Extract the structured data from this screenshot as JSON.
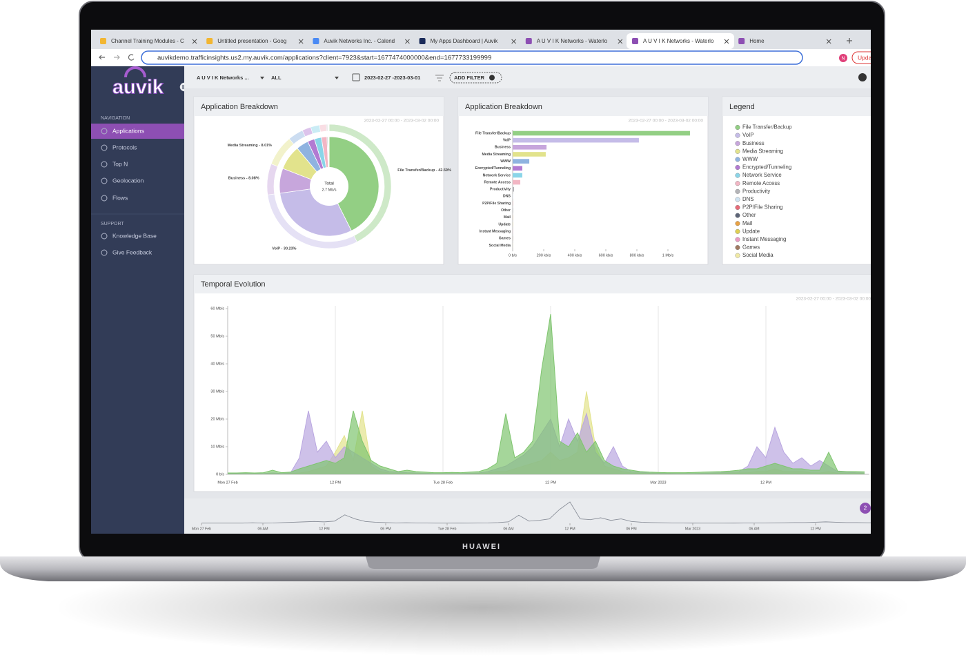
{
  "browser": {
    "tabs": [
      "Channel Training Modules - C",
      "Untitled presentation - Goog",
      "Auvik Networks Inc. - Calend",
      "My Apps Dashboard | Auvik",
      "A U V I K Networks - Waterlo",
      "A U V I K Networks - Waterlo",
      "Home"
    ],
    "url": "auvikdemo.trafficinsights.us2.my.auvik.com/applications?client=7923&start=1677474000000&end=1677733199999",
    "update_button": "Upda",
    "profile": "N"
  },
  "sidebar": {
    "logo": "auvik",
    "nav_heading": "NAVIGATION",
    "nav": [
      "Applications",
      "Protocols",
      "Top N",
      "Geolocation",
      "Flows"
    ],
    "support_heading": "SUPPORT",
    "support": [
      "Knowledge Base",
      "Give Feedback"
    ]
  },
  "toolbar": {
    "network": "A U V I K Networks ...",
    "filter": "ALL",
    "date_range": "2023-02-27 -2023-03-01",
    "add_filter": "ADD FILTER"
  },
  "legend": {
    "title": "Legend"
  },
  "chart_data": [
    {
      "type": "pie",
      "title": "Application Breakdown",
      "subtitle": "2023-02-27 00:00 - 2023-03-02 00:00",
      "center_label": "Total",
      "center_value": "2.7 Mb/s",
      "categories": [
        "File Transfer/Backup",
        "VoIP",
        "Business",
        "Media Streaming",
        "WWW",
        "Encrypted/Tunneling",
        "Network Service",
        "Remote Access",
        "Productivity",
        "DNS",
        "P2P/File Sharing",
        "Other",
        "Mail",
        "Update",
        "Instant Messaging",
        "Games",
        "Social Media"
      ],
      "values": [
        42.59,
        30.23,
        8.08,
        8.01,
        4.0,
        2.3,
        2.3,
        1.8,
        0.3,
        0.05,
        0.05,
        0.05,
        0.05,
        0.05,
        0.05,
        0.05,
        0.05
      ],
      "value_labels": [
        "File Transfer/Backup - 42.59%",
        "VoIP - 30.23%",
        "Business - 8.08%",
        "Media Streaming - 8.01%",
        null,
        null,
        null,
        null,
        null,
        null,
        null,
        null,
        null,
        null,
        null,
        null,
        null
      ],
      "colors": [
        "#93cf84",
        "#c5bce8",
        "#c7a6dc",
        "#e2e38c",
        "#8fb3e0",
        "#b27ad2",
        "#8ad5e8",
        "#f2b6c4",
        "#b4b4b8",
        "#cfe3f2",
        "#e76b78",
        "#5c6477",
        "#e9a244",
        "#dfcf52",
        "#ea9ac2",
        "#a07a62",
        "#f0e9a4"
      ]
    },
    {
      "type": "bar",
      "orientation": "horizontal",
      "title": "Application Breakdown",
      "subtitle": "2023-02-27 00:00 - 2023-03-02 00:00",
      "categories": [
        "File Transfer/Backup",
        "VoIP",
        "Business",
        "Media Streaming",
        "WWW",
        "Encrypted/Tunneling",
        "Network Service",
        "Remote Access",
        "Productivity",
        "DNS",
        "P2P/File Sharing",
        "Other",
        "Mail",
        "Update",
        "Instant Messaging",
        "Games",
        "Social Media"
      ],
      "values": [
        1142,
        813,
        218,
        213,
        107,
        62,
        62,
        49,
        9,
        2,
        1,
        1,
        1,
        1,
        1,
        1,
        1
      ],
      "colors": [
        "#93cf84",
        "#c5bce8",
        "#c7a6dc",
        "#e2e38c",
        "#8fb3e0",
        "#b27ad2",
        "#8ad5e8",
        "#f2b6c4",
        "#b4b4b8",
        "#cfe3f2",
        "#e76b78",
        "#5c6477",
        "#e9a244",
        "#dfcf52",
        "#ea9ac2",
        "#a07a62",
        "#f0e9a4"
      ],
      "xlim": [
        0,
        1200
      ],
      "xticks": [
        {
          "value": 0,
          "label": "0 b/s"
        },
        {
          "value": 200,
          "label": "200 kb/s"
        },
        {
          "value": 400,
          "label": "400 kb/s"
        },
        {
          "value": 600,
          "label": "600 kb/s"
        },
        {
          "value": 800,
          "label": "800 kb/s"
        },
        {
          "value": 1000,
          "label": "1 Mb/s"
        }
      ]
    },
    {
      "type": "area",
      "title": "Temporal Evolution",
      "subtitle": "2023-02-27 00:00 - 2023-03-02 00:00",
      "x": [
        0,
        1,
        2,
        3,
        4,
        5,
        6,
        7,
        8,
        9,
        10,
        11,
        12,
        13,
        14,
        15,
        16,
        17,
        18,
        19,
        20,
        21,
        22,
        23,
        24,
        25,
        26,
        27,
        28,
        29,
        30,
        31,
        32,
        33,
        34,
        35,
        36,
        37,
        38,
        39,
        40,
        41,
        42,
        43,
        44,
        45,
        46,
        47,
        48,
        49,
        50,
        51,
        52,
        53,
        54,
        55,
        56,
        57,
        58,
        59,
        60,
        61,
        62,
        63,
        64,
        65,
        66,
        67,
        68,
        69,
        70,
        71
      ],
      "xlim": [
        0,
        71.5
      ],
      "xticks": [
        {
          "value": 0,
          "label": "Mon 27 Feb"
        },
        {
          "value": 12,
          "label": "12 PM"
        },
        {
          "value": 24,
          "label": "Tue 28 Feb"
        },
        {
          "value": 36,
          "label": "12 PM"
        },
        {
          "value": 48,
          "label": "Mar 2023"
        },
        {
          "value": 60,
          "label": "12 PM"
        }
      ],
      "ylim": [
        0,
        60
      ],
      "yticks": [
        {
          "value": 0,
          "label": "0 b/s"
        },
        {
          "value": 10,
          "label": "10 Mb/s"
        },
        {
          "value": 20,
          "label": "20 Mb/s"
        },
        {
          "value": 30,
          "label": "30 Mb/s"
        },
        {
          "value": 40,
          "label": "40 Mb/s"
        },
        {
          "value": 50,
          "label": "50 Mb/s"
        },
        {
          "value": 60,
          "label": "60 Mb/s"
        }
      ],
      "grid": "x",
      "series": [
        {
          "color": "#e2e38c",
          "values": [
            0.2,
            0.2,
            0.2,
            0.2,
            0.2,
            0.3,
            0.2,
            0.3,
            0.5,
            1,
            2,
            3,
            8,
            14,
            5,
            23,
            3,
            1,
            0.5,
            0.4,
            0.3,
            0.3,
            0.2,
            0.2,
            0.2,
            0.2,
            0.2,
            0.2,
            0.3,
            0.5,
            1,
            1,
            2,
            3,
            4,
            5,
            8,
            5,
            6,
            8,
            30,
            10,
            3,
            2,
            1,
            0.5,
            0.4,
            0.3,
            0.3,
            0.2,
            0.2,
            0.2,
            0.2,
            0.3,
            0.3,
            0.3,
            0.4,
            0.5,
            0.6,
            1,
            1,
            2,
            1,
            1,
            1,
            0.6,
            0.5,
            1,
            0.4,
            0.3,
            0.3,
            0.3
          ]
        },
        {
          "color": "#b9a6e0",
          "values": [
            0.3,
            0.3,
            0.3,
            0.2,
            0.3,
            0.5,
            0.3,
            0.5,
            6,
            23,
            8,
            12,
            6,
            10,
            8,
            6,
            4,
            2,
            1,
            0.8,
            0.6,
            0.5,
            0.4,
            0.3,
            0.3,
            0.3,
            0.3,
            0.4,
            0.5,
            1,
            2,
            3,
            5,
            7,
            10,
            15,
            20,
            10,
            20,
            12,
            22,
            8,
            4,
            10,
            3,
            1,
            0.8,
            0.5,
            0.4,
            0.4,
            0.3,
            0.3,
            0.3,
            0.4,
            0.5,
            0.6,
            0.8,
            1,
            3,
            10,
            6,
            17,
            8,
            4,
            6,
            3,
            5,
            3,
            1,
            0.8,
            0.6,
            0.5
          ]
        },
        {
          "color": "#7fc56f",
          "values": [
            0.5,
            0.5,
            0.6,
            0.5,
            0.6,
            1.5,
            0.6,
            0.8,
            2,
            3,
            4,
            5,
            4,
            6,
            23,
            12,
            5,
            3,
            2,
            1,
            1.5,
            1,
            0.8,
            0.6,
            0.6,
            0.7,
            0.6,
            0.8,
            1,
            2,
            4,
            22,
            6,
            8,
            12,
            38,
            58,
            12,
            10,
            15,
            8,
            12,
            5,
            3,
            2,
            1.5,
            1,
            0.8,
            0.7,
            0.6,
            0.6,
            0.6,
            0.7,
            0.8,
            0.9,
            1,
            1.2,
            1.5,
            2,
            2,
            3,
            4,
            3,
            2,
            2,
            1.5,
            1.5,
            8,
            1.2,
            1,
            1,
            0.9
          ]
        }
      ]
    }
  ],
  "navigator": {
    "badge": "2",
    "xlim": [
      0,
      72
    ],
    "ticks": [
      {
        "value": 0,
        "label": "Mon 27 Feb"
      },
      {
        "value": 6,
        "label": "06 AM"
      },
      {
        "value": 12,
        "label": "12 PM"
      },
      {
        "value": 18,
        "label": "06 PM"
      },
      {
        "value": 24,
        "label": "Tue 28 Feb"
      },
      {
        "value": 30,
        "label": "06 AM"
      },
      {
        "value": 36,
        "label": "12 PM"
      },
      {
        "value": 42,
        "label": "06 PM"
      },
      {
        "value": 48,
        "label": "Mar 2023"
      },
      {
        "value": 54,
        "label": "06 AM"
      },
      {
        "value": 60,
        "label": "12 PM"
      }
    ]
  },
  "device": {
    "brand": "HUAWEI"
  }
}
